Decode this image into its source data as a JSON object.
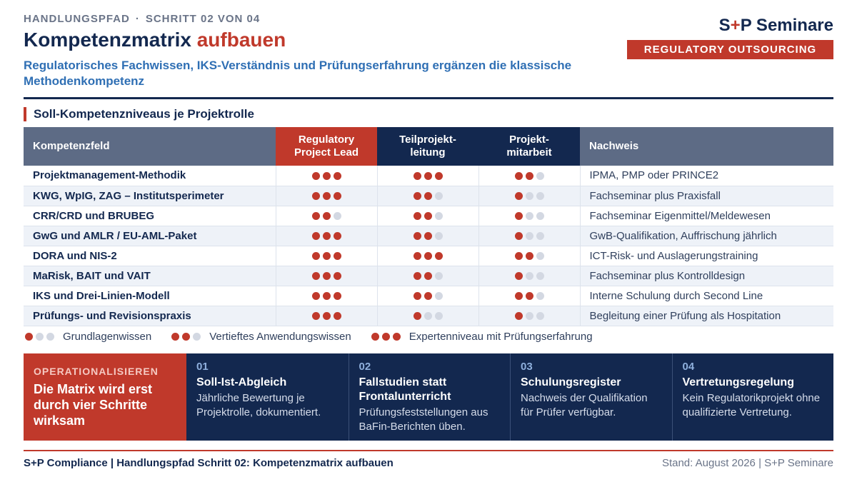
{
  "header": {
    "kicker_left": "HANDLUNGSPFAD",
    "kicker_sep": "·",
    "kicker_right": "SCHRITT 02 VON 04",
    "title_main": "Kompetenzmatrix",
    "title_accent": "aufbauen",
    "subtitle": "Regulatorisches Fachwissen, IKS-Verständnis und Prüfungserfahrung ergänzen die klassische Methodenkompetenz",
    "brand_name": "S+P Seminare",
    "brand_s": "S",
    "brand_plus": "+",
    "brand_rest": "P Seminare",
    "brand_badge": "REGULATORY OUTSOURCING"
  },
  "section": {
    "title": "Soll-Kompetenzniveaus je Projektrolle"
  },
  "table": {
    "headers": {
      "field": "Kompetenzfeld",
      "lead_line1": "Regulatory",
      "lead_line2": "Project Lead",
      "tpl_line1": "Teilprojekt-",
      "tpl_line2": "leitung",
      "pm_line1": "Projekt-",
      "pm_line2": "mitarbeit",
      "proof": "Nachweis"
    },
    "rows": [
      {
        "field": "Projektmanagement-Methodik",
        "lead": 3,
        "tpl": 3,
        "pm": 2,
        "proof": "IPMA, PMP oder PRINCE2"
      },
      {
        "field": "KWG, WpIG, ZAG – Institutsperimeter",
        "lead": 3,
        "tpl": 2,
        "pm": 1,
        "proof": "Fachseminar plus Praxisfall"
      },
      {
        "field": "CRR/CRD und BRUBEG",
        "lead": 2,
        "tpl": 2,
        "pm": 1,
        "proof": "Fachseminar Eigenmittel/Meldewesen"
      },
      {
        "field": "GwG und AMLR / EU-AML-Paket",
        "lead": 3,
        "tpl": 2,
        "pm": 1,
        "proof": "GwB-Qualifikation, Auffrischung jährlich"
      },
      {
        "field": "DORA und NIS-2",
        "lead": 3,
        "tpl": 3,
        "pm": 2,
        "proof": "ICT-Risk- und Auslagerungstraining"
      },
      {
        "field": "MaRisk, BAIT und VAIT",
        "lead": 3,
        "tpl": 2,
        "pm": 1,
        "proof": "Fachseminar plus Kontrolldesign"
      },
      {
        "field": "IKS und Drei-Linien-Modell",
        "lead": 3,
        "tpl": 2,
        "pm": 2,
        "proof": "Interne Schulung durch Second Line"
      },
      {
        "field": "Prüfungs- und Revisionspraxis",
        "lead": 3,
        "tpl": 1,
        "pm": 1,
        "proof": "Begleitung einer Prüfung als Hospitation"
      }
    ]
  },
  "legend": [
    {
      "level": 1,
      "label": "Grundlagenwissen"
    },
    {
      "level": 2,
      "label": "Vertieftes Anwendungswissen"
    },
    {
      "level": 3,
      "label": "Expertenniveau mit Prüfungserfahrung"
    }
  ],
  "ops": {
    "kicker": "OPERATIONALISIEREN",
    "text": "Die Matrix wird erst durch vier Schritte wirksam"
  },
  "steps": [
    {
      "num": "01",
      "title": "Soll-Ist-Abgleich",
      "desc": "Jährliche Bewertung je Projektrolle, dokumentiert."
    },
    {
      "num": "02",
      "title": "Fallstudien statt Frontalunterricht",
      "desc": "Prüfungsfeststellungen aus BaFin-Berichten üben."
    },
    {
      "num": "03",
      "title": "Schulungsregister",
      "desc": "Nachweis der Qualifikation für Prüfer verfügbar."
    },
    {
      "num": "04",
      "title": "Vertretungsregelung",
      "desc": "Kein Regulatorikprojekt ohne qualifizierte Vertretung."
    }
  ],
  "footer": {
    "left": "S+P Compliance  |  Handlungspfad Schritt 02: Kompetenzmatrix aufbauen",
    "right": "Stand: August 2026  |  S+P Seminare"
  },
  "colors": {
    "accent": "#c0392b",
    "navy": "#13284f",
    "slate": "#5d6b85",
    "dot_off": "#d3d8e2"
  }
}
